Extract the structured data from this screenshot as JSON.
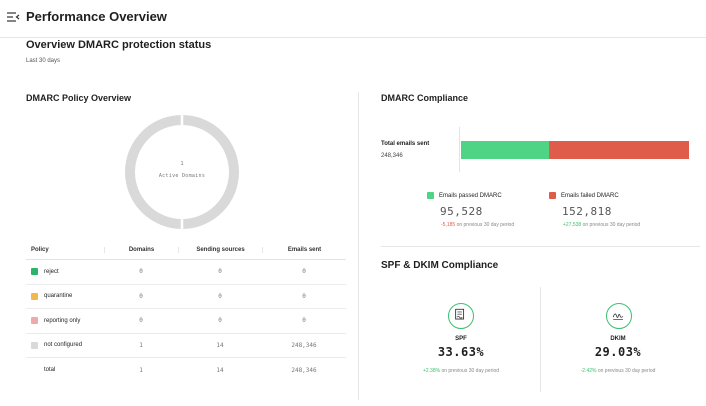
{
  "header": {
    "title": "Performance Overview",
    "menu_icon": "menu-collapse-icon"
  },
  "overview": {
    "title": "Overview DMARC protection status",
    "subtitle": "Last 30 days"
  },
  "policy_overview": {
    "title": "DMARC Policy Overview",
    "donut": {
      "center_value": "1",
      "center_label": "Active Domains",
      "color": "#d9d9d9"
    },
    "columns": [
      "Policy",
      "Domains",
      "Sending sources",
      "Emails sent"
    ],
    "rows": [
      {
        "policy": "reject",
        "color": "#2fb36a",
        "domains": "0",
        "sources": "0",
        "emails": "0"
      },
      {
        "policy": "quarantine",
        "color": "#f2b84b",
        "domains": "0",
        "sources": "0",
        "emails": "0"
      },
      {
        "policy": "reporting only",
        "color": "#f0a9a9",
        "domains": "0",
        "sources": "0",
        "emails": "0"
      },
      {
        "policy": "not configured",
        "color": "#d9d9d9",
        "domains": "1",
        "sources": "14",
        "emails": "248,346"
      },
      {
        "policy": "total",
        "color": "",
        "domains": "1",
        "sources": "14",
        "emails": "248,346"
      }
    ]
  },
  "compliance": {
    "title": "DMARC Compliance",
    "total_label": "Total emails sent",
    "total_value": "248,346",
    "passed": {
      "label": "Emails passed DMARC",
      "value": "95,528",
      "delta": "-5,185",
      "delta_suffix": "on previous 30 day period",
      "color": "#4fd486"
    },
    "failed": {
      "label": "Emails failed DMARC",
      "value": "152,818",
      "delta": "+27,538",
      "delta_suffix": "on previous 30 day period",
      "color": "#e05c4a"
    }
  },
  "chart_data": {
    "type": "bar",
    "categories": [
      "Total emails sent"
    ],
    "series": [
      {
        "name": "Emails passed DMARC",
        "values": [
          95528
        ]
      },
      {
        "name": "Emails failed DMARC",
        "values": [
          152818
        ]
      }
    ],
    "stacked": true,
    "orientation": "horizontal"
  },
  "spf_dkim": {
    "title": "SPF & DKIM Compliance",
    "spf": {
      "label": "SPF",
      "value": "33.63%",
      "delta": "+2.38%",
      "delta_suffix": "on previous 30 day period",
      "icon": "document-signature-icon"
    },
    "dkim": {
      "label": "DKIM",
      "value": "29.03%",
      "delta": "-2.42%",
      "delta_suffix": "on previous 30 day period",
      "icon": "signature-icon"
    }
  }
}
